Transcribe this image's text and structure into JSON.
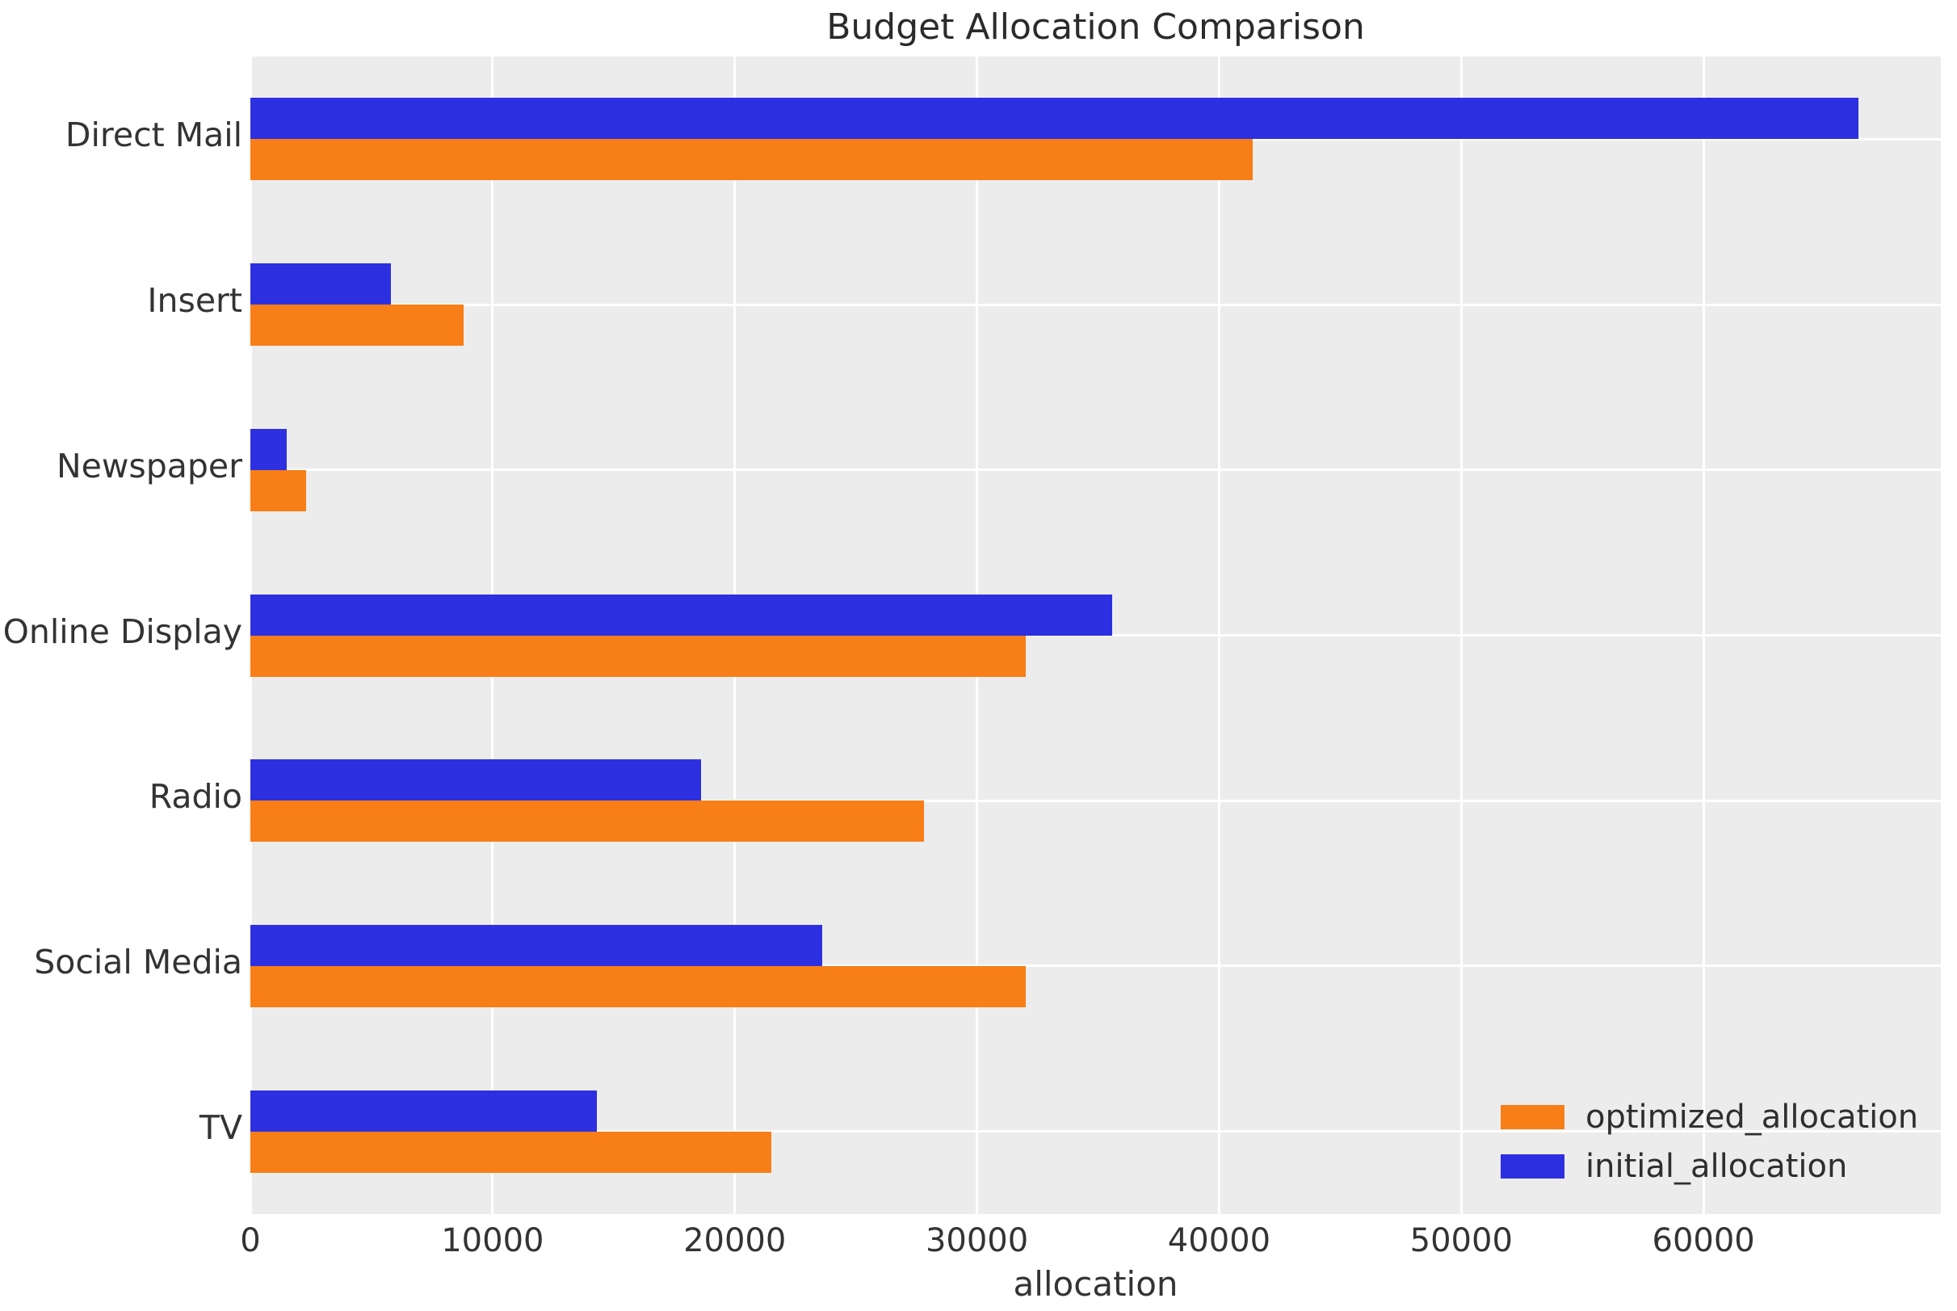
{
  "title": "Budget Allocation Comparison",
  "chart_data": {
    "type": "bar",
    "orientation": "horizontal",
    "title": "Budget Allocation Comparison",
    "xlabel": "allocation",
    "ylabel": "",
    "categories": [
      "Direct Mail",
      "Insert",
      "Newspaper",
      "Online Display",
      "Radio",
      "Social Media",
      "TV"
    ],
    "series": [
      {
        "name": "optimized_allocation",
        "color": "#f87e17",
        "values": [
          41400,
          8800,
          2300,
          32000,
          27800,
          32000,
          21500
        ]
      },
      {
        "name": "initial_allocation",
        "color": "#2d30e1",
        "values": [
          66400,
          5800,
          1500,
          35600,
          18600,
          23600,
          14300
        ]
      }
    ],
    "xlim": [
      0,
      69800
    ],
    "xticks": [
      0,
      10000,
      20000,
      30000,
      40000,
      50000,
      60000
    ],
    "xtick_labels": [
      "0",
      "10000",
      "20000",
      "30000",
      "40000",
      "50000",
      "60000"
    ],
    "grid": true,
    "grid_color": "#ffffff",
    "plot_background": "#ececec",
    "legend_position": "lower right",
    "legend": {
      "items": [
        {
          "label": "optimized_allocation",
          "color": "#f87e17"
        },
        {
          "label": "initial_allocation",
          "color": "#2d30e1"
        }
      ]
    }
  }
}
